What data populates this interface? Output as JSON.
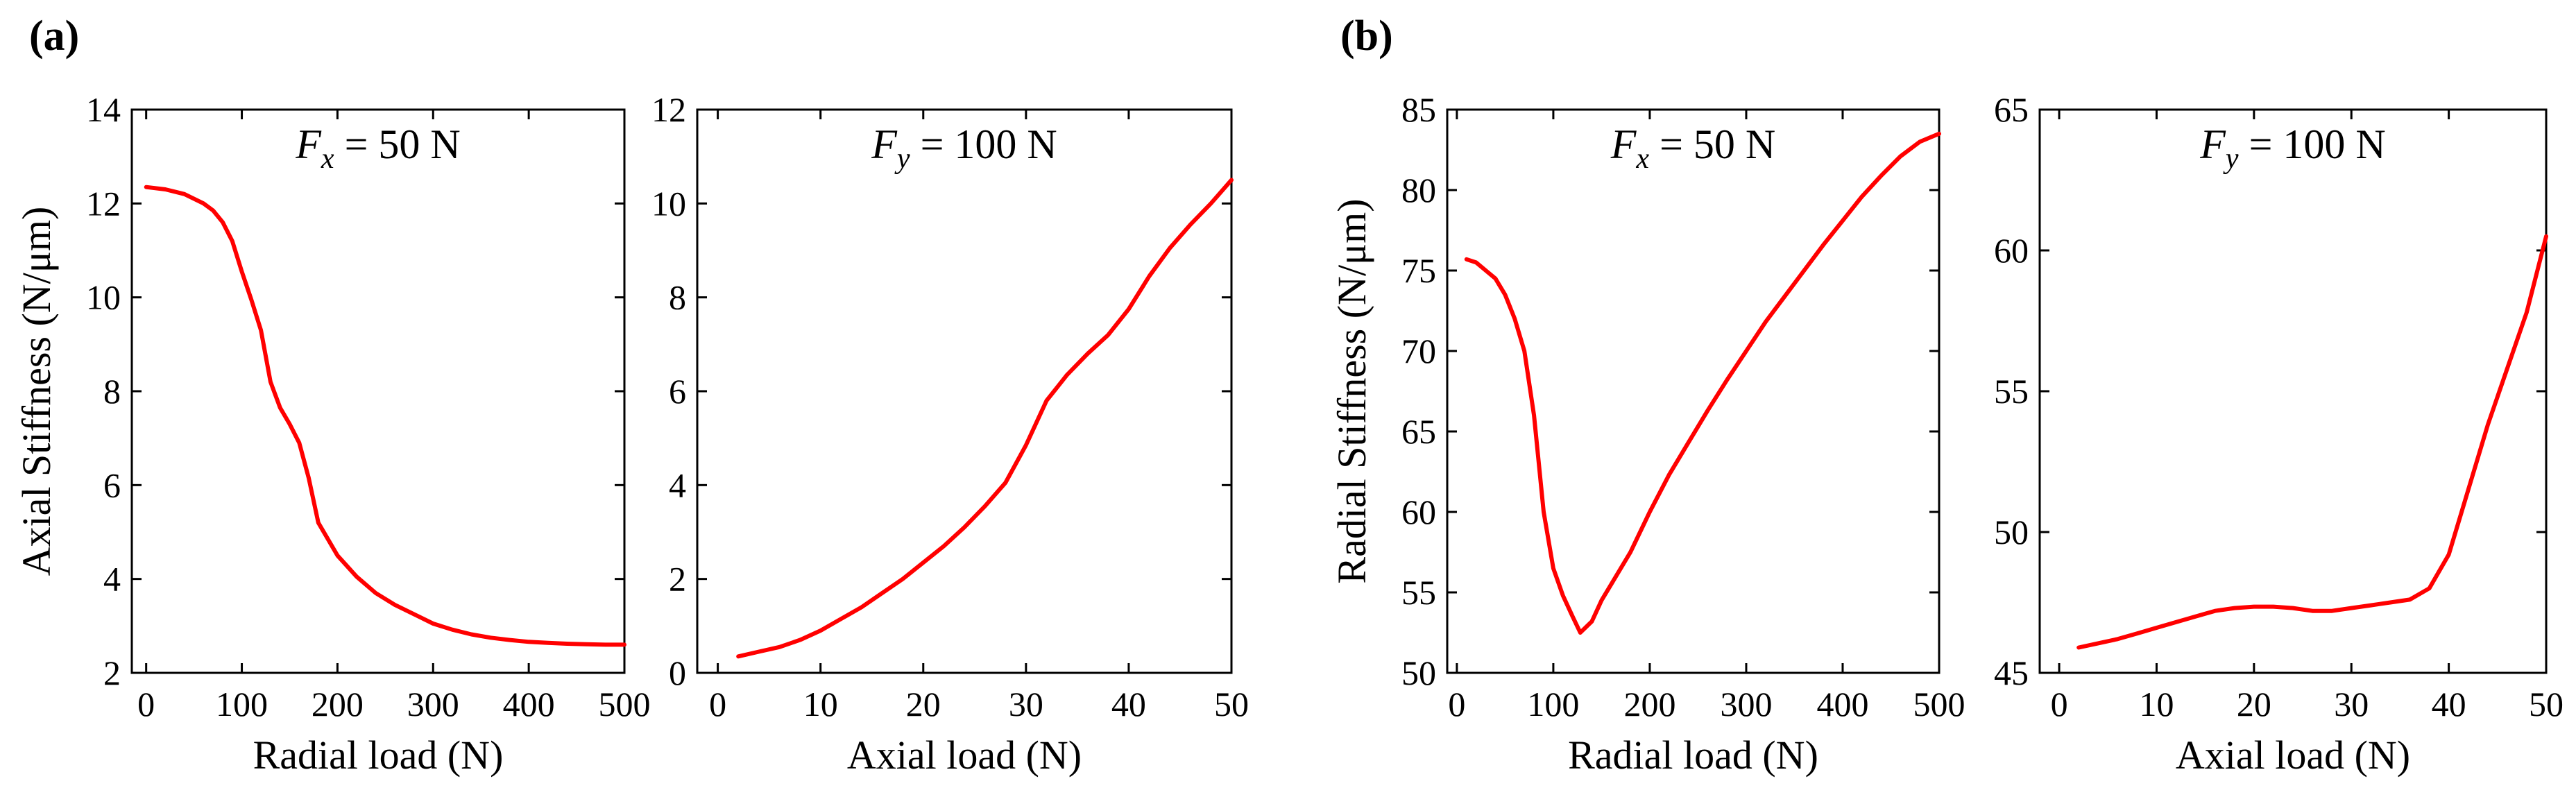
{
  "panel_tags": [
    "(a)",
    "(b)"
  ],
  "curve_color": "#ff0000",
  "chart_data": [
    {
      "type": "line",
      "annotation": {
        "var": "F",
        "sub": "x",
        "rest": " = 50 N"
      },
      "xlabel": "Radial load (N)",
      "ylabel": "Axial Stiffness (N/μm)",
      "xlim": [
        -15,
        500
      ],
      "ylim": [
        2,
        14
      ],
      "xticks": [
        0,
        100,
        200,
        300,
        400,
        500
      ],
      "yticks": [
        2,
        4,
        6,
        8,
        10,
        12,
        14
      ],
      "x": [
        0,
        20,
        40,
        60,
        70,
        80,
        90,
        100,
        110,
        120,
        130,
        140,
        150,
        160,
        170,
        180,
        200,
        220,
        240,
        260,
        280,
        300,
        320,
        340,
        360,
        380,
        400,
        420,
        440,
        460,
        480,
        500
      ],
      "y": [
        12.35,
        12.3,
        12.2,
        12.0,
        11.85,
        11.6,
        11.2,
        10.55,
        9.95,
        9.3,
        8.2,
        7.65,
        7.3,
        6.9,
        6.15,
        5.2,
        4.5,
        4.05,
        3.7,
        3.45,
        3.25,
        3.05,
        2.92,
        2.82,
        2.75,
        2.7,
        2.66,
        2.64,
        2.62,
        2.61,
        2.6,
        2.6
      ]
    },
    {
      "type": "line",
      "annotation": {
        "var": "F",
        "sub": "y",
        "rest": " = 100 N"
      },
      "xlabel": "Axial load (N)",
      "ylabel": "",
      "xlim": [
        -2,
        50
      ],
      "ylim": [
        0,
        12
      ],
      "xticks": [
        0,
        10,
        20,
        30,
        40,
        50
      ],
      "yticks": [
        0,
        2,
        4,
        6,
        8,
        10,
        12
      ],
      "x": [
        2,
        4,
        6,
        8,
        10,
        12,
        14,
        16,
        18,
        20,
        22,
        24,
        26,
        28,
        30,
        32,
        34,
        36,
        38,
        40,
        42,
        44,
        46,
        48,
        50
      ],
      "y": [
        0.35,
        0.45,
        0.55,
        0.7,
        0.9,
        1.15,
        1.4,
        1.7,
        2.0,
        2.35,
        2.7,
        3.1,
        3.55,
        4.05,
        4.85,
        5.8,
        6.35,
        6.8,
        7.2,
        7.75,
        8.45,
        9.05,
        9.55,
        10.0,
        10.5
      ]
    },
    {
      "type": "line",
      "annotation": {
        "var": "F",
        "sub": "x",
        "rest": " = 50 N"
      },
      "xlabel": "Radial load (N)",
      "ylabel": "Radial Stiffness (N/μm)",
      "xlim": [
        -10,
        500
      ],
      "ylim": [
        50,
        85
      ],
      "xticks": [
        0,
        100,
        200,
        300,
        400,
        500
      ],
      "yticks": [
        50,
        55,
        60,
        65,
        70,
        75,
        80,
        85
      ],
      "x": [
        10,
        20,
        30,
        40,
        50,
        60,
        70,
        80,
        90,
        100,
        110,
        120,
        128,
        140,
        150,
        160,
        180,
        200,
        220,
        240,
        260,
        280,
        300,
        320,
        340,
        360,
        380,
        400,
        420,
        440,
        460,
        480,
        500
      ],
      "y": [
        75.7,
        75.5,
        75.0,
        74.5,
        73.5,
        72.0,
        70.0,
        66.0,
        60.0,
        56.5,
        54.8,
        53.5,
        52.5,
        53.2,
        54.5,
        55.5,
        57.5,
        60.0,
        62.3,
        64.3,
        66.3,
        68.2,
        70.0,
        71.8,
        73.4,
        75.0,
        76.6,
        78.1,
        79.6,
        80.9,
        82.1,
        83.0,
        83.5
      ]
    },
    {
      "type": "line",
      "annotation": {
        "var": "F",
        "sub": "y",
        "rest": " = 100 N"
      },
      "xlabel": "Axial load (N)",
      "ylabel": "",
      "xlim": [
        -2,
        50
      ],
      "ylim": [
        45,
        65
      ],
      "xticks": [
        0,
        10,
        20,
        30,
        40,
        50
      ],
      "yticks": [
        45,
        50,
        55,
        60,
        65
      ],
      "x": [
        2,
        4,
        6,
        8,
        10,
        12,
        14,
        16,
        18,
        20,
        22,
        24,
        26,
        28,
        30,
        32,
        34,
        36,
        38,
        40,
        42,
        44,
        46,
        48,
        50
      ],
      "y": [
        45.9,
        46.05,
        46.2,
        46.4,
        46.6,
        46.8,
        47.0,
        47.2,
        47.3,
        47.35,
        47.35,
        47.3,
        47.2,
        47.2,
        47.3,
        47.4,
        47.5,
        47.6,
        48.0,
        49.2,
        51.5,
        53.8,
        55.8,
        57.8,
        60.5
      ]
    }
  ]
}
